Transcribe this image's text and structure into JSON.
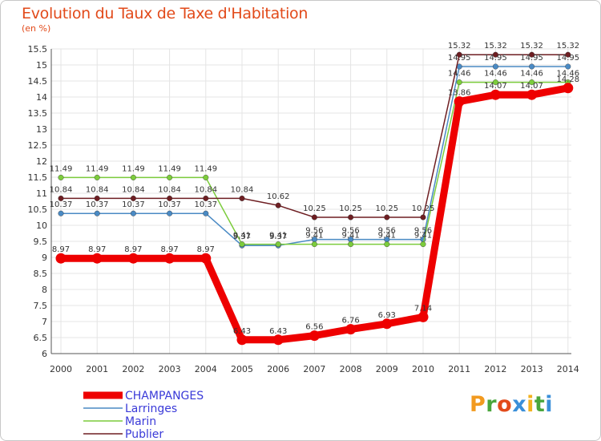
{
  "title": "Evolution du Taux de Taxe d'Habitation",
  "unit": "(en %)",
  "logo": {
    "text": "Proxiti",
    "letters": [
      {
        "ch": "P",
        "color": "#f29a1f"
      },
      {
        "ch": "r",
        "color": "#4aa63c"
      },
      {
        "ch": "o",
        "color": "#e24a1a"
      },
      {
        "ch": "x",
        "color": "#3a8fd9"
      },
      {
        "ch": "i",
        "color": "#f2b21f"
      },
      {
        "ch": "t",
        "color": "#4aa63c"
      },
      {
        "ch": "i",
        "color": "#3a8fd9"
      }
    ]
  },
  "chart_data": {
    "type": "line",
    "categories": [
      "2000",
      "2001",
      "2002",
      "2003",
      "2004",
      "2005",
      "2006",
      "2007",
      "2008",
      "2009",
      "2010",
      "2011",
      "2012",
      "2013",
      "2014"
    ],
    "ylim": [
      6,
      15.5
    ],
    "yticks": [
      "6",
      "6.5",
      "7",
      "7.5",
      "8",
      "8.5",
      "9",
      "9.5",
      "10",
      "10.5",
      "11",
      "11.5",
      "12",
      "12.5",
      "13",
      "13.5",
      "14",
      "14.5",
      "15",
      "15.5"
    ],
    "grid": true,
    "legend_position": "bottom-left",
    "series": [
      {
        "name": "CHAMPANGES",
        "color": "#ee0000",
        "emphasis": true,
        "values": [
          8.97,
          8.97,
          8.97,
          8.97,
          8.97,
          6.43,
          6.43,
          6.56,
          6.76,
          6.93,
          7.14,
          13.86,
          14.07,
          14.07,
          14.28
        ],
        "labels": [
          "8.97",
          "8.97",
          "8.97",
          "8.97",
          "8.97",
          "6.43",
          "6.43",
          "6.56",
          "6.76",
          "6.93",
          "7.14",
          "13.86",
          "14.07",
          "14.07",
          "14.28"
        ]
      },
      {
        "name": "Larringes",
        "color": "#4a8ac4",
        "values": [
          10.37,
          10.37,
          10.37,
          10.37,
          10.37,
          9.37,
          9.37,
          9.56,
          9.56,
          9.56,
          9.56,
          14.95,
          14.95,
          14.95,
          14.95
        ],
        "labels": [
          "10.37",
          "10.37",
          "10.37",
          "10.37",
          "10.37",
          "9.37",
          "9.37",
          "9.56",
          "9.56",
          "9.56",
          "9.56",
          "14.95",
          "14.95",
          "14.95",
          "14.95"
        ]
      },
      {
        "name": "Marin",
        "color": "#7ccc3c",
        "values": [
          11.49,
          11.49,
          11.49,
          11.49,
          11.49,
          9.41,
          9.41,
          9.41,
          9.41,
          9.41,
          9.41,
          14.46,
          14.46,
          14.46,
          14.46
        ],
        "labels": [
          "11.49",
          "11.49",
          "11.49",
          "11.49",
          "11.49",
          "9.41",
          "9.41",
          "9.41",
          "9.41",
          "9.41",
          "9.41",
          "14.46",
          "14.46",
          "14.46",
          "14.46"
        ]
      },
      {
        "name": "Publier",
        "color": "#6e1e22",
        "values": [
          10.84,
          10.84,
          10.84,
          10.84,
          10.84,
          10.84,
          10.62,
          10.25,
          10.25,
          10.25,
          10.25,
          15.32,
          15.32,
          15.32,
          15.32
        ],
        "labels": [
          "10.84",
          "10.84",
          "10.84",
          "10.84",
          "10.84",
          "10.84",
          "10.62",
          "10.25",
          "10.25",
          "10.25",
          "10.25",
          "15.32",
          "15.32",
          "15.32",
          "15.32"
        ]
      }
    ]
  }
}
